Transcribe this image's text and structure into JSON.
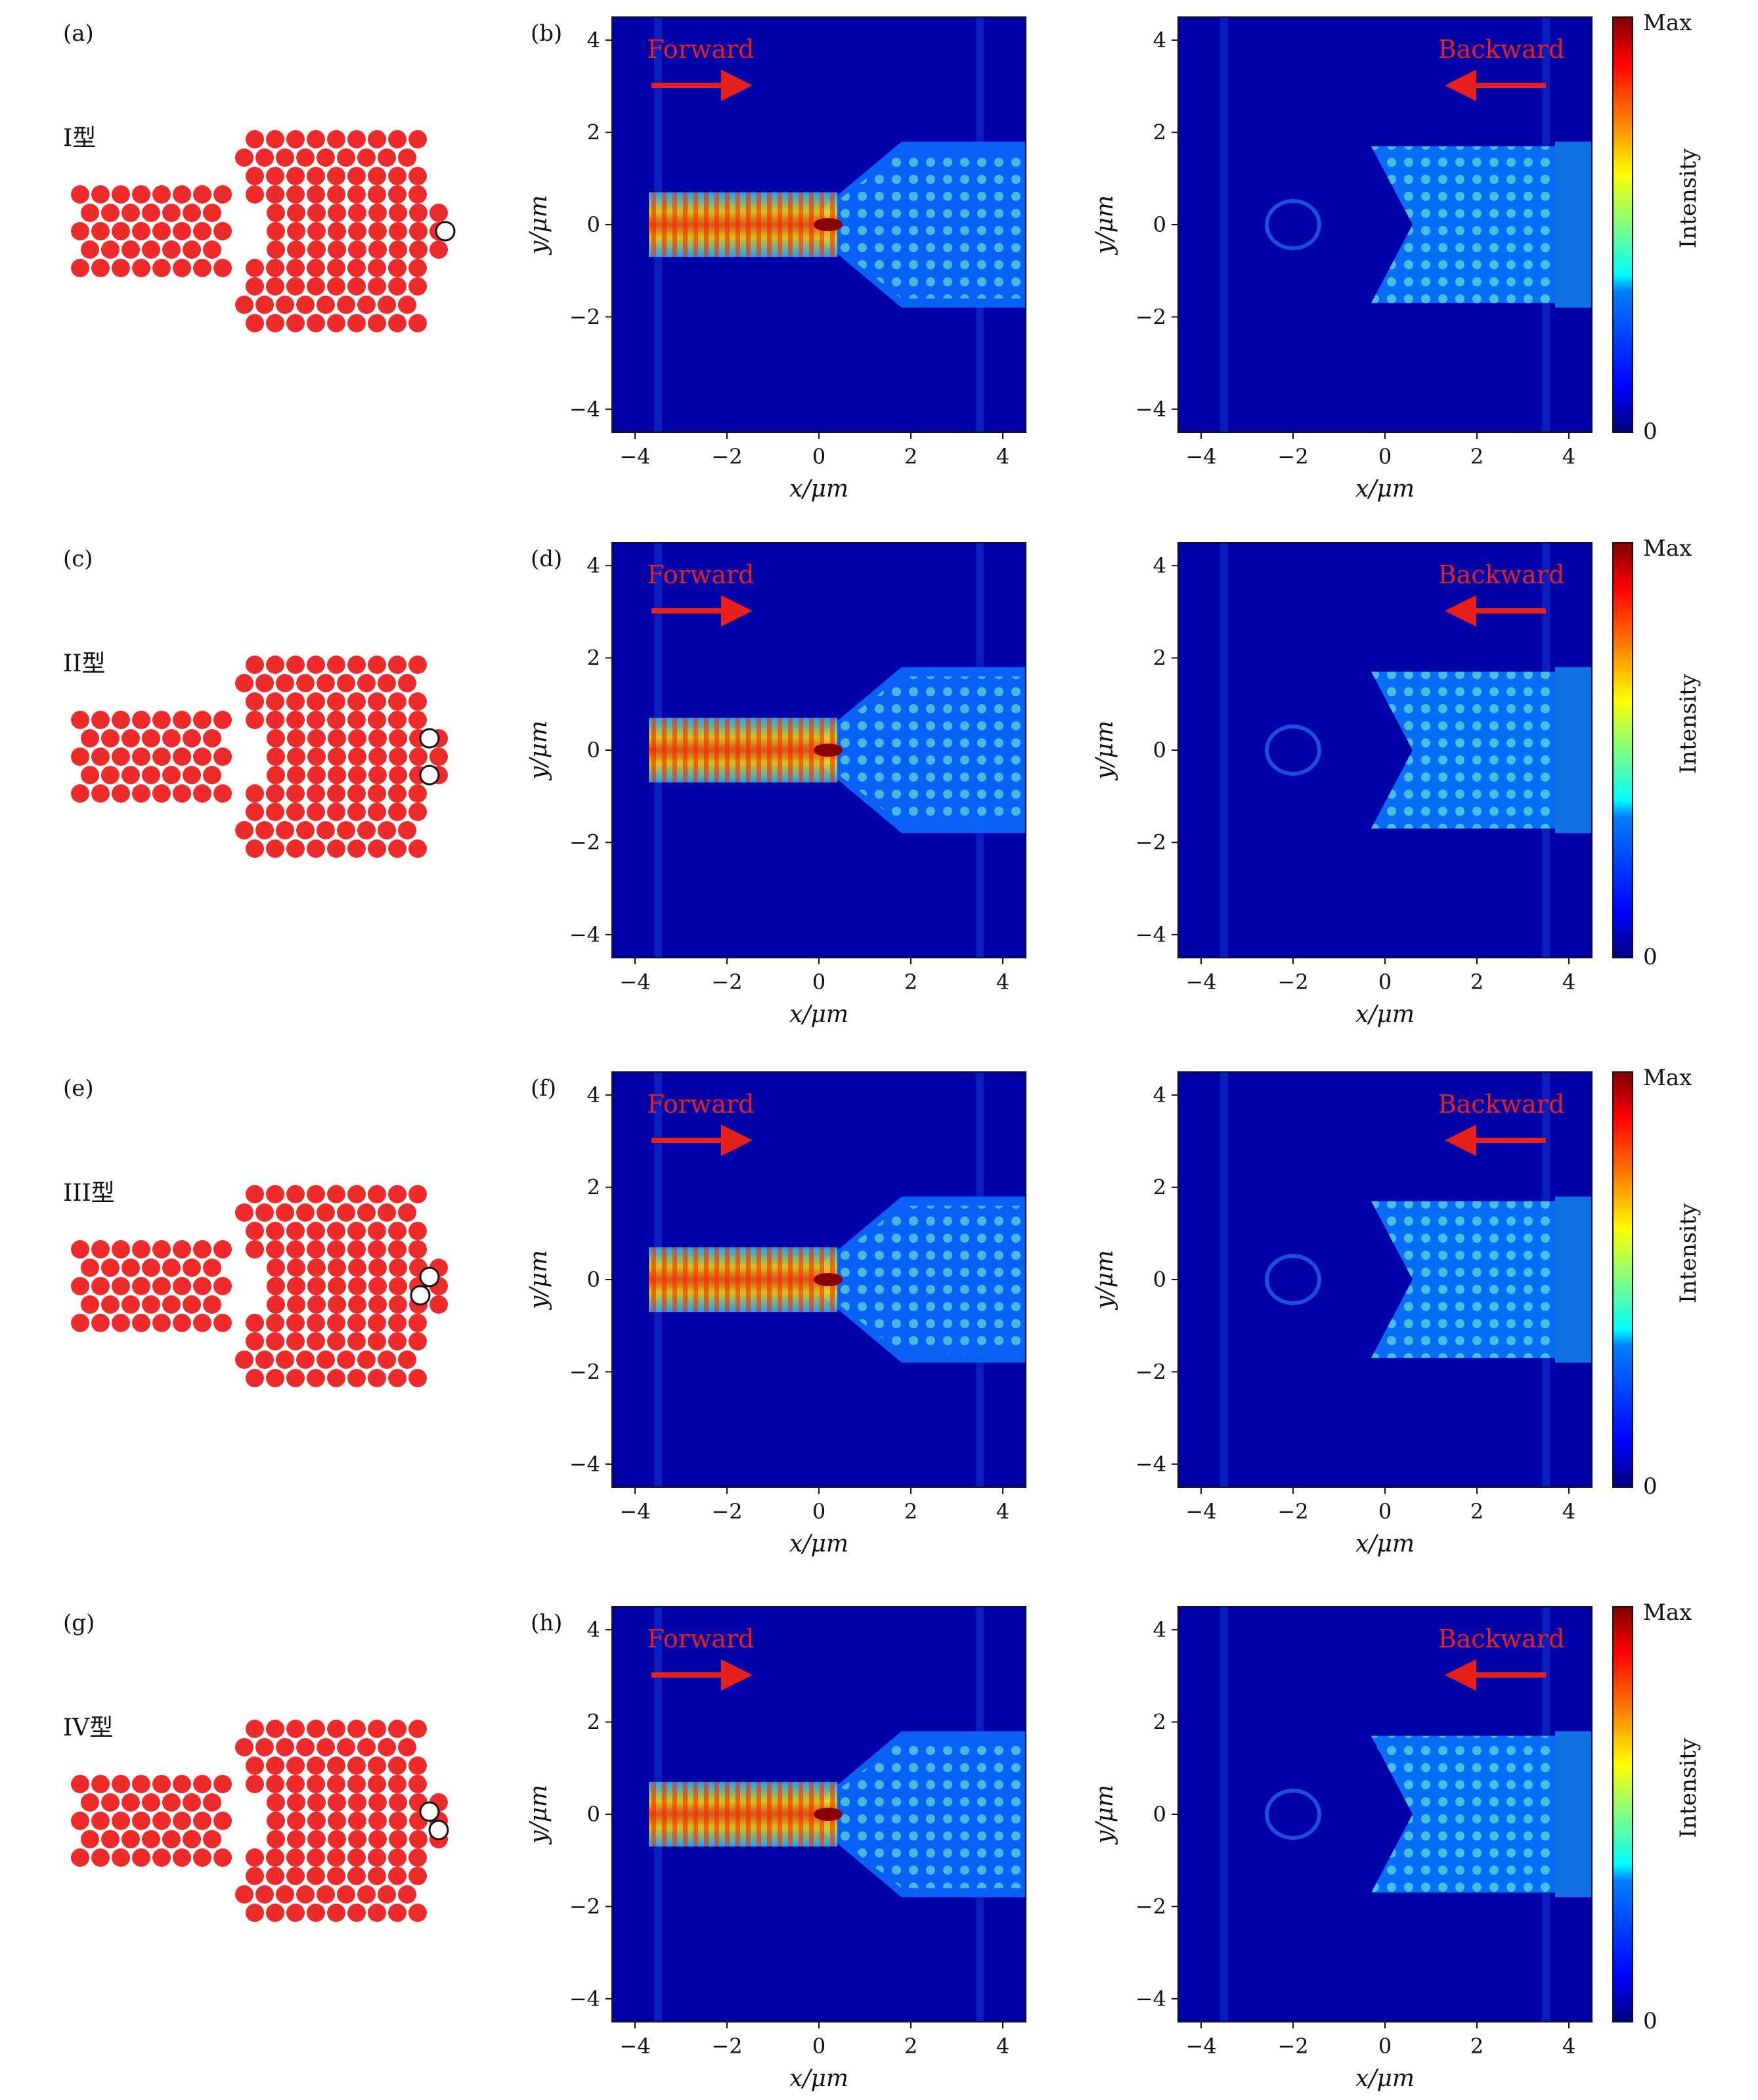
{
  "colors": {
    "rod": "#ee2a2a",
    "arrow": "#e8201c",
    "direction_label": "#e8201c",
    "colormap": [
      "#00007f",
      "#0000ff",
      "#007fff",
      "#00ffff",
      "#7fff7f",
      "#ffff00",
      "#ff7f00",
      "#ff0000",
      "#7f0000"
    ]
  },
  "rows": [
    {
      "structure": {
        "panel_label": "(a)",
        "type_label": "I型",
        "holes": 1
      },
      "forward": {
        "panel_label": "(b)",
        "direction": "Forward"
      },
      "backward": {
        "direction": "Backward"
      },
      "colorbar": {
        "max_label": "Max",
        "min_label": "0",
        "title": "Intensity"
      }
    },
    {
      "structure": {
        "panel_label": "(c)",
        "type_label": "II型",
        "holes": 2
      },
      "forward": {
        "panel_label": "(d)",
        "direction": "Forward"
      },
      "backward": {
        "direction": "Backward"
      },
      "colorbar": {
        "max_label": "Max",
        "min_label": "0",
        "title": "Intensity"
      }
    },
    {
      "structure": {
        "panel_label": "(e)",
        "type_label": "III型",
        "holes": 2
      },
      "forward": {
        "panel_label": "(f)",
        "direction": "Forward"
      },
      "backward": {
        "direction": "Backward"
      },
      "colorbar": {
        "max_label": "Max",
        "min_label": "0",
        "title": "Intensity"
      }
    },
    {
      "structure": {
        "panel_label": "(g)",
        "type_label": "IV型",
        "holes": 2
      },
      "forward": {
        "panel_label": "(h)",
        "direction": "Forward"
      },
      "backward": {
        "direction": "Backward"
      },
      "colorbar": {
        "max_label": "Max",
        "min_label": "0",
        "title": "Intensity"
      }
    }
  ],
  "axes": {
    "xlabel": "x/μm",
    "ylabel": "y/μm",
    "xticks": [
      "−4",
      "−2",
      "0",
      "2",
      "4"
    ],
    "yticks": [
      "4",
      "2",
      "0",
      "−2",
      "−4"
    ],
    "xlim": [
      -4.5,
      4.5
    ],
    "ylim": [
      -4.5,
      4.5
    ]
  }
}
